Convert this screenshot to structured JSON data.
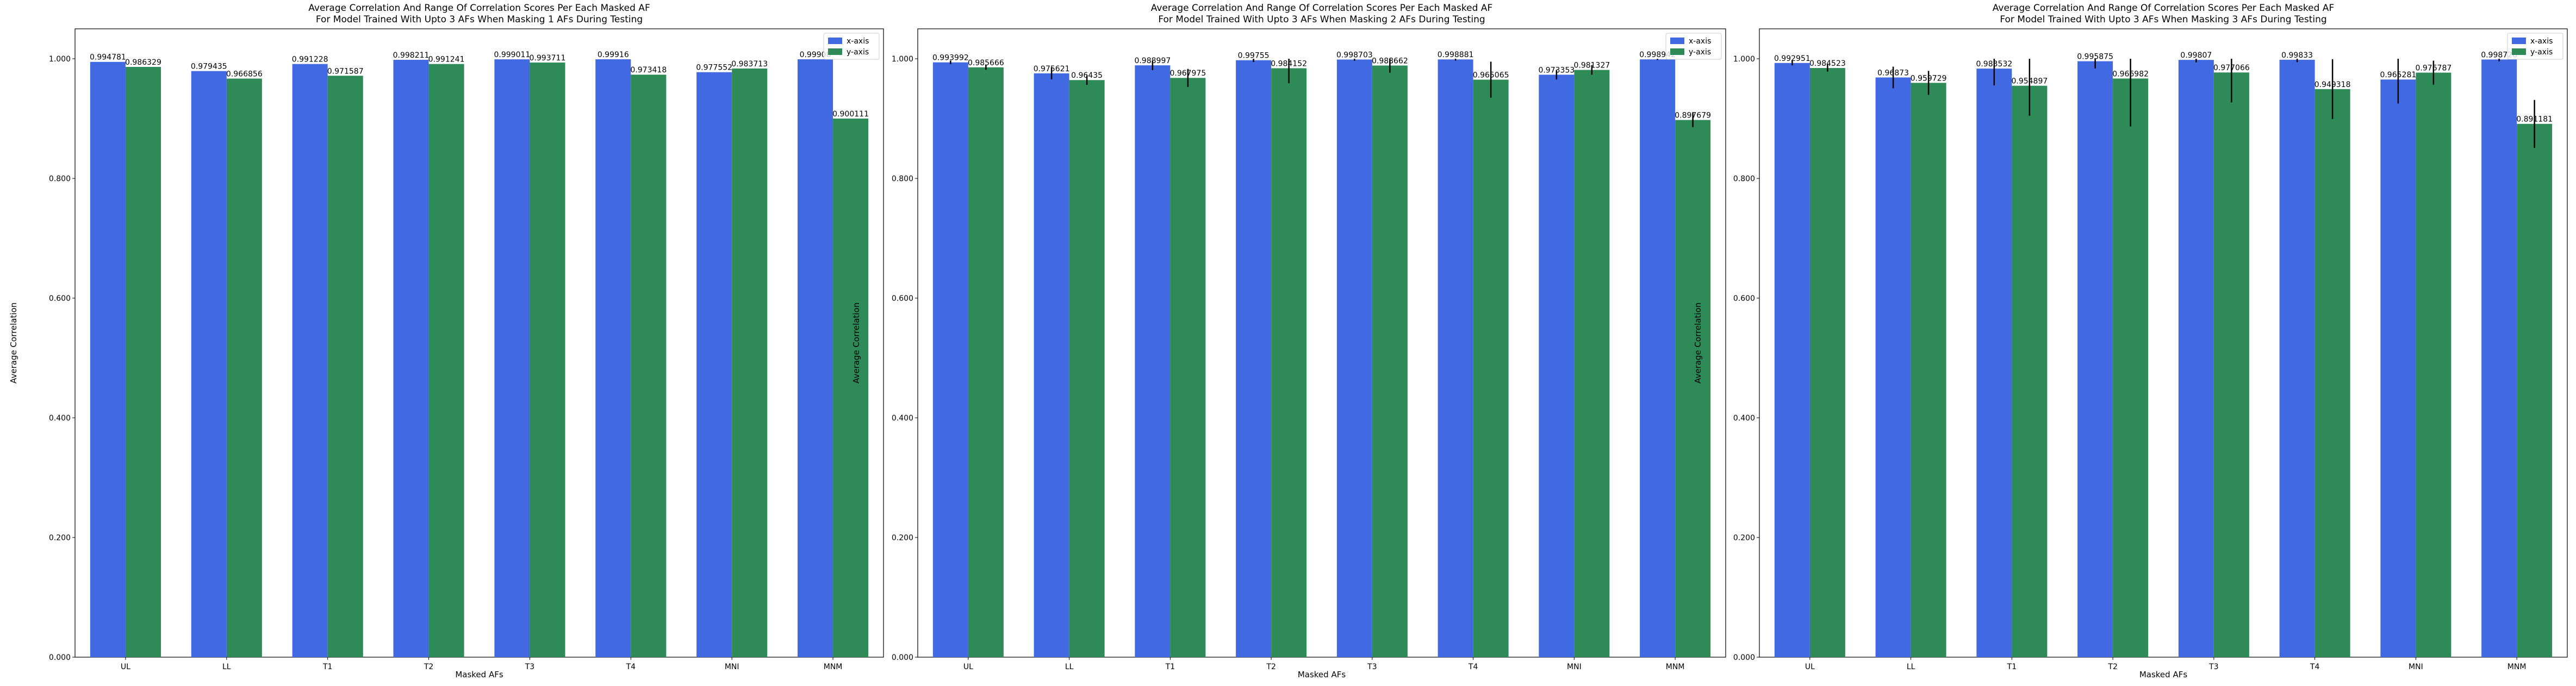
{
  "colors": {
    "x_axis": "#4169E1",
    "y_axis": "#2E8B57",
    "error": "#000000"
  },
  "chart_data": [
    {
      "type": "bar",
      "title": [
        "Average Correlation And Range Of Correlation Scores Per Each Masked AF",
        "For Model Trained With Upto 3 AFs When Masking 1 AFs During Testing"
      ],
      "xlabel": "Masked AFs",
      "ylabel": "Average Correlation",
      "ylim": [
        0,
        1.05
      ],
      "yticks": [
        "0.000",
        "0.200",
        "0.400",
        "0.600",
        "0.800",
        "1.000"
      ],
      "legend": "top-right",
      "categories": [
        "UL",
        "LL",
        "T1",
        "T2",
        "T3",
        "T4",
        "MNI",
        "MNM"
      ],
      "series": [
        {
          "name": "x-axis",
          "values": [
            0.994781,
            0.979435,
            0.991228,
            0.998211,
            0.999011,
            0.99916,
            0.977552,
            0.99908
          ],
          "labels": [
            "0.994781",
            "0.979435",
            "0.991228",
            "0.998211",
            "0.999011",
            "0.99916",
            "0.977552",
            "0.99908"
          ],
          "err": [
            0.0,
            0.0,
            0.0,
            0.0,
            0.0,
            0.0,
            0.0,
            0.0
          ]
        },
        {
          "name": "y-axis",
          "values": [
            0.986329,
            0.966856,
            0.971587,
            0.991241,
            0.993711,
            0.973418,
            0.983713,
            0.900111
          ],
          "labels": [
            "0.986329",
            "0.966856",
            "0.971587",
            "0.991241",
            "0.993711",
            "0.973418",
            "0.983713",
            "0.900111"
          ],
          "err": [
            0.0,
            0.0,
            0.0,
            0.0,
            0.0,
            0.0,
            0.0,
            0.0
          ]
        }
      ]
    },
    {
      "type": "bar",
      "title": [
        "Average Correlation And Range Of Correlation Scores Per Each Masked AF",
        "For Model Trained With Upto 3 AFs When Masking 2 AFs During Testing"
      ],
      "xlabel": "Masked AFs",
      "ylabel": "Average Correlation",
      "ylim": [
        0,
        1.05
      ],
      "yticks": [
        "0.000",
        "0.200",
        "0.400",
        "0.600",
        "0.800",
        "1.000"
      ],
      "legend": "top-right",
      "categories": [
        "UL",
        "LL",
        "T1",
        "T2",
        "T3",
        "T4",
        "MNI",
        "MNM"
      ],
      "series": [
        {
          "name": "x-axis",
          "values": [
            0.993992,
            0.975621,
            0.988997,
            0.99755,
            0.998703,
            0.998881,
            0.973353,
            0.998942
          ],
          "labels": [
            "0.993992",
            "0.975621",
            "0.988997",
            "0.99755",
            "0.998703",
            "0.998881",
            "0.973353",
            "0.998942"
          ],
          "err": [
            0.003,
            0.01,
            0.008,
            0.003,
            0.002,
            0.002,
            0.008,
            0.001
          ]
        },
        {
          "name": "y-axis",
          "values": [
            0.985666,
            0.96435,
            0.967975,
            0.984152,
            0.988662,
            0.965065,
            0.981327,
            0.897679
          ],
          "labels": [
            "0.985666",
            "0.96435",
            "0.967975",
            "0.984152",
            "0.988662",
            "0.965065",
            "0.981327",
            "0.897679"
          ],
          "err": [
            0.004,
            0.008,
            0.015,
            0.025,
            0.012,
            0.03,
            0.008,
            0.012
          ]
        }
      ]
    },
    {
      "type": "bar",
      "title": [
        "Average Correlation And Range Of Correlation Scores Per Each Masked AF",
        "For Model Trained With Upto 3 AFs When Masking 3 AFs During Testing"
      ],
      "xlabel": "Masked AFs",
      "ylabel": "Average Correlation",
      "ylim": [
        0,
        1.05
      ],
      "yticks": [
        "0.000",
        "0.200",
        "0.400",
        "0.600",
        "0.800",
        "1.000"
      ],
      "legend": "top-right",
      "categories": [
        "UL",
        "LL",
        "T1",
        "T2",
        "T3",
        "T4",
        "MNI",
        "MNM"
      ],
      "series": [
        {
          "name": "x-axis",
          "values": [
            0.992951,
            0.96873,
            0.983532,
            0.995875,
            0.99807,
            0.99833,
            0.965281,
            0.998726
          ],
          "labels": [
            "0.992951",
            "0.96873",
            "0.983532",
            "0.995875",
            "0.99807",
            "0.99833",
            "0.965281",
            "0.998726"
          ],
          "err": [
            0.004,
            0.018,
            0.028,
            0.012,
            0.004,
            0.004,
            0.04,
            0.003
          ]
        },
        {
          "name": "y-axis",
          "values": [
            0.984523,
            0.959729,
            0.954897,
            0.966982,
            0.977066,
            0.949318,
            0.976787,
            0.891181
          ],
          "labels": [
            "0.984523",
            "0.959729",
            "0.954897",
            "0.966982",
            "0.977066",
            "0.949318",
            "0.976787",
            "0.891181"
          ],
          "err": [
            0.006,
            0.02,
            0.05,
            0.08,
            0.05,
            0.05,
            0.02,
            0.04
          ]
        }
      ]
    }
  ]
}
